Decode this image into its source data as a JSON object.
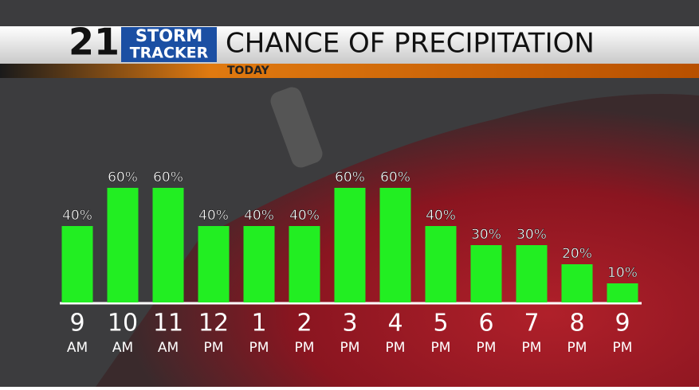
{
  "chart_data": {
    "type": "bar",
    "title": "CHANCE OF PRECIPITATION",
    "subtitle": "TODAY",
    "logo": {
      "number": "21",
      "line1": "STORM",
      "line2": "TRACKER"
    },
    "categories": [
      [
        "9",
        "AM"
      ],
      [
        "10",
        "AM"
      ],
      [
        "11",
        "AM"
      ],
      [
        "12",
        "PM"
      ],
      [
        "1",
        "PM"
      ],
      [
        "2",
        "PM"
      ],
      [
        "3",
        "PM"
      ],
      [
        "4",
        "PM"
      ],
      [
        "5",
        "PM"
      ],
      [
        "6",
        "PM"
      ],
      [
        "7",
        "PM"
      ],
      [
        "8",
        "PM"
      ],
      [
        "9",
        "PM"
      ]
    ],
    "values": [
      40,
      60,
      60,
      40,
      40,
      40,
      60,
      60,
      40,
      30,
      30,
      20,
      10
    ],
    "value_labels": [
      "40%",
      "60%",
      "60%",
      "40%",
      "40%",
      "40%",
      "60%",
      "60%",
      "40%",
      "30%",
      "30%",
      "20%",
      "10%"
    ],
    "color": "#22ee22"
  }
}
